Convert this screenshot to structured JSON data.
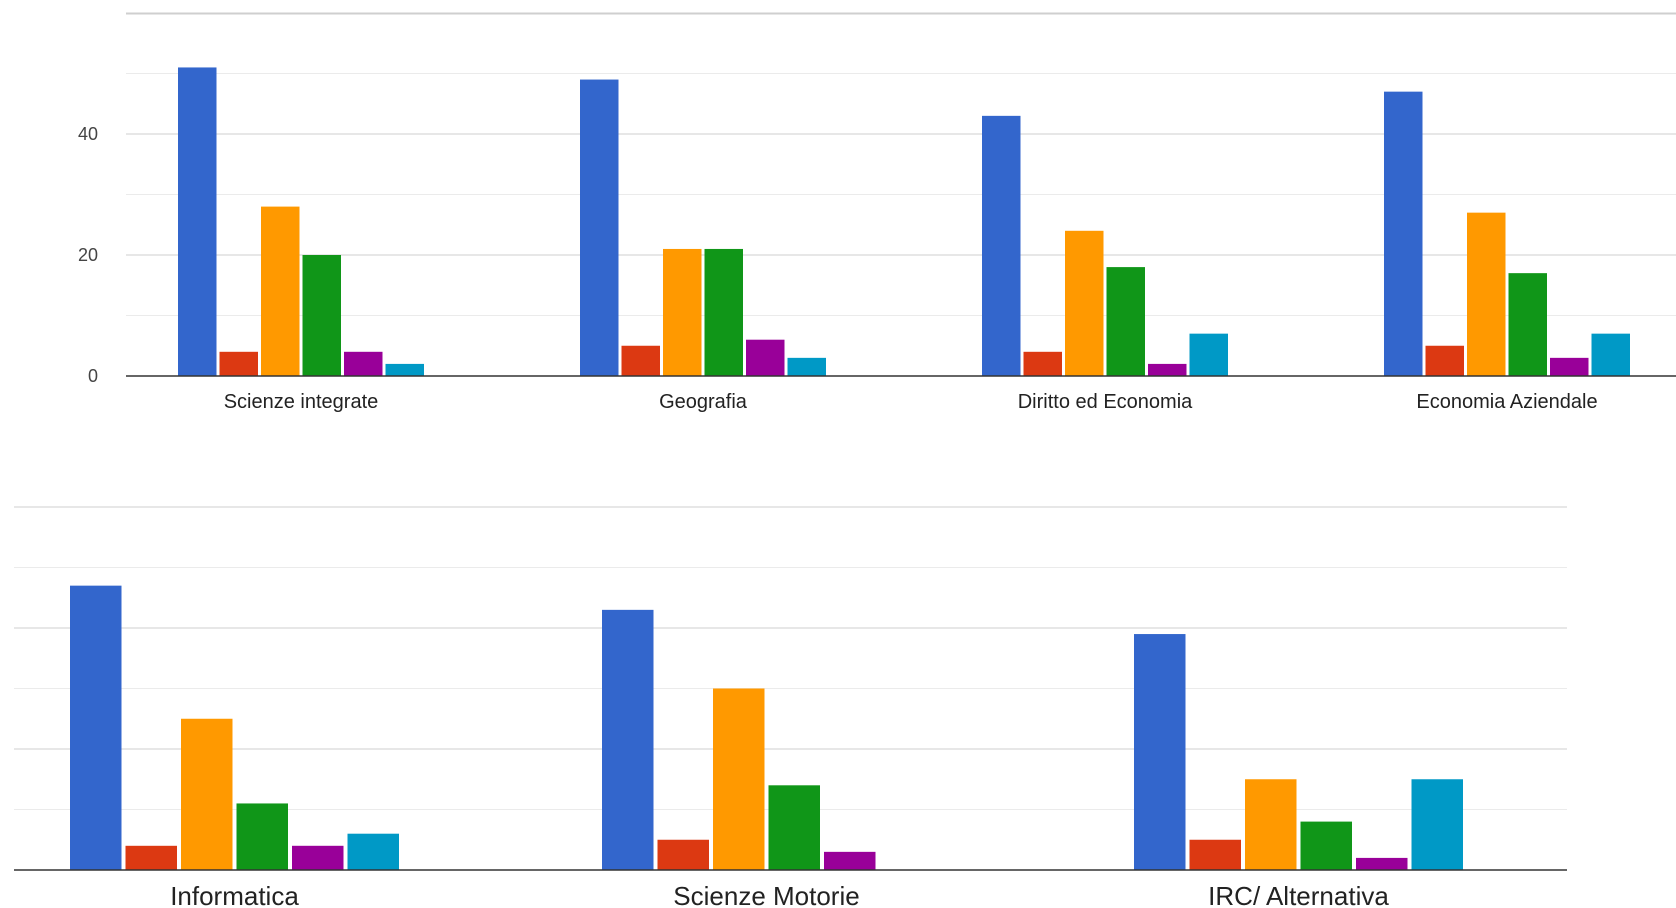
{
  "colors": [
    "#3366cc",
    "#dc3912",
    "#ff9900",
    "#109618",
    "#990099",
    "#0099c6"
  ],
  "chart_data": [
    {
      "type": "bar",
      "title": "",
      "xlabel": "",
      "ylabel": "",
      "ylim": [
        0,
        50
      ],
      "y_ticks": [
        0,
        20,
        40
      ],
      "y_tick_labels": [
        "0",
        "20",
        "40"
      ],
      "grid": true,
      "categories": [
        "Scienze integrate",
        "Geografia",
        "Diritto ed Economia",
        "Economia Aziendale"
      ],
      "series": [
        {
          "values": [
            51,
            49,
            43,
            47
          ]
        },
        {
          "values": [
            4,
            5,
            4,
            5
          ]
        },
        {
          "values": [
            28,
            21,
            24,
            27
          ]
        },
        {
          "values": [
            20,
            21,
            18,
            17
          ]
        },
        {
          "values": [
            4,
            6,
            2,
            3
          ]
        },
        {
          "values": [
            2,
            3,
            7,
            7
          ]
        }
      ]
    },
    {
      "type": "bar",
      "title": "",
      "xlabel": "",
      "ylabel": "",
      "ylim": [
        0,
        50
      ],
      "y_ticks": [],
      "y_tick_labels": [],
      "grid": true,
      "categories": [
        "Informatica",
        "Scienze Motorie",
        "IRC/ Alternativa"
      ],
      "series": [
        {
          "values": [
            47,
            43,
            39
          ]
        },
        {
          "values": [
            4,
            5,
            5
          ]
        },
        {
          "values": [
            25,
            30,
            15
          ]
        },
        {
          "values": [
            11,
            14,
            8
          ]
        },
        {
          "values": [
            4,
            3,
            2
          ]
        },
        {
          "values": [
            6,
            0,
            15
          ]
        }
      ]
    }
  ]
}
